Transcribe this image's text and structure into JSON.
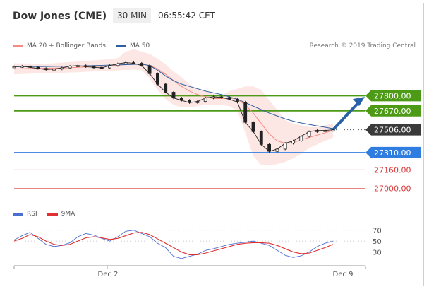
{
  "header": {
    "title": "Dow Jones (CME)",
    "interval": "30 MIN",
    "time": "06:55:42 CET"
  },
  "legend": {
    "items": [
      {
        "label": "MA 20 + Bollinger Bands",
        "color": "#f28b82"
      },
      {
        "label": "MA 50",
        "color": "#2f5f9e"
      }
    ],
    "credit": "Research © 2019 Trading Central"
  },
  "rsi_legend": {
    "items": [
      {
        "label": "RSI",
        "color": "#4a6fd1"
      },
      {
        "label": "9MA",
        "color": "#e03030"
      }
    ]
  },
  "colors": {
    "green_level": "#4c9a16",
    "blue_level": "#2f7de1",
    "red_level": "#e57373",
    "current_price": "#3a3a3a",
    "arrow": "#2a62a8"
  },
  "chart_data": [
    {
      "type": "line",
      "name": "price",
      "x_labels": [
        "Dec 2",
        "Dec 9"
      ],
      "levels": [
        {
          "label": "27800.00",
          "value": 27800,
          "kind": "resistance"
        },
        {
          "label": "27670.00",
          "value": 27670,
          "kind": "resistance"
        },
        {
          "label": "27506.00",
          "value": 27506,
          "kind": "current"
        },
        {
          "label": "27310.00",
          "value": 27310,
          "kind": "pivot"
        },
        {
          "label": "27160.00",
          "value": 27160,
          "kind": "support"
        },
        {
          "label": "27000.00",
          "value": 27000,
          "kind": "support"
        }
      ],
      "ylim": [
        26870,
        28150
      ],
      "price": [
        28050,
        28055,
        28045,
        28035,
        28025,
        28030,
        28040,
        28055,
        28060,
        28050,
        28045,
        28040,
        28060,
        28075,
        28085,
        28080,
        28060,
        27990,
        27900,
        27830,
        27780,
        27760,
        27740,
        27750,
        27780,
        27790,
        27785,
        27770,
        27745,
        27570,
        27490,
        27380,
        27320,
        27340,
        27390,
        27410,
        27450,
        27490,
        27500,
        27500,
        27506
      ],
      "ma20": [
        28030,
        28032,
        28035,
        28036,
        28037,
        28038,
        28039,
        28041,
        28045,
        28049,
        28052,
        28054,
        28057,
        28062,
        28068,
        28071,
        28072,
        28061,
        28031,
        27985,
        27930,
        27880,
        27840,
        27810,
        27790,
        27775,
        27775,
        27780,
        27770,
        27720,
        27650,
        27560,
        27470,
        27410,
        27390,
        27395,
        27420,
        27440,
        27460,
        27480,
        27500
      ],
      "upper_band": [
        28080,
        28079,
        28078,
        28077,
        28077,
        28080,
        28085,
        28090,
        28095,
        28100,
        28105,
        28110,
        28115,
        28125,
        28180,
        28200,
        28180,
        28160,
        28120,
        28070,
        28010,
        27960,
        27900,
        27860,
        27840,
        27820,
        27800,
        27840,
        27860,
        27880,
        27880,
        27850,
        27760,
        27680,
        27590,
        27560,
        27545,
        27530,
        27530,
        27545,
        27560
      ],
      "lower_band": [
        27985,
        27987,
        27990,
        27992,
        27994,
        27996,
        27998,
        28000,
        28002,
        28006,
        28010,
        28012,
        28015,
        28018,
        28022,
        28024,
        28022,
        27950,
        27850,
        27770,
        27720,
        27700,
        27700,
        27710,
        27720,
        27720,
        27720,
        27710,
        27670,
        27480,
        27280,
        27200,
        27200,
        27210,
        27230,
        27260,
        27300,
        27350,
        27380,
        27410,
        27440
      ],
      "ma50": [
        28050,
        28050,
        28051,
        28051,
        28052,
        28053,
        28054,
        28055,
        28056,
        28058,
        28060,
        28062,
        28064,
        28066,
        28068,
        28070,
        28072,
        28060,
        28020,
        27970,
        27930,
        27900,
        27880,
        27860,
        27840,
        27825,
        27810,
        27790,
        27770,
        27740,
        27710,
        27680,
        27650,
        27625,
        27600,
        27580,
        27565,
        27552,
        27540,
        27528,
        27516
      ]
    },
    {
      "type": "line",
      "name": "rsi",
      "y_ticks": [
        "70",
        "50",
        "30"
      ],
      "ylim": [
        10,
        80
      ],
      "rsi": [
        52,
        60,
        66,
        55,
        44,
        40,
        42,
        47,
        58,
        64,
        61,
        55,
        50,
        58,
        68,
        70,
        64,
        58,
        46,
        38,
        22,
        18,
        22,
        26,
        33,
        36,
        40,
        44,
        46,
        48,
        50,
        46,
        42,
        33,
        24,
        20,
        23,
        30,
        40,
        46,
        50
      ],
      "rsi_ma": [
        50,
        55,
        62,
        58,
        50,
        44,
        42,
        44,
        50,
        56,
        58,
        56,
        53,
        55,
        60,
        65,
        66,
        62,
        54,
        46,
        38,
        30,
        25,
        25,
        28,
        32,
        36,
        40,
        44,
        46,
        47,
        47,
        46,
        42,
        36,
        30,
        27,
        28,
        33,
        38,
        44
      ]
    }
  ]
}
